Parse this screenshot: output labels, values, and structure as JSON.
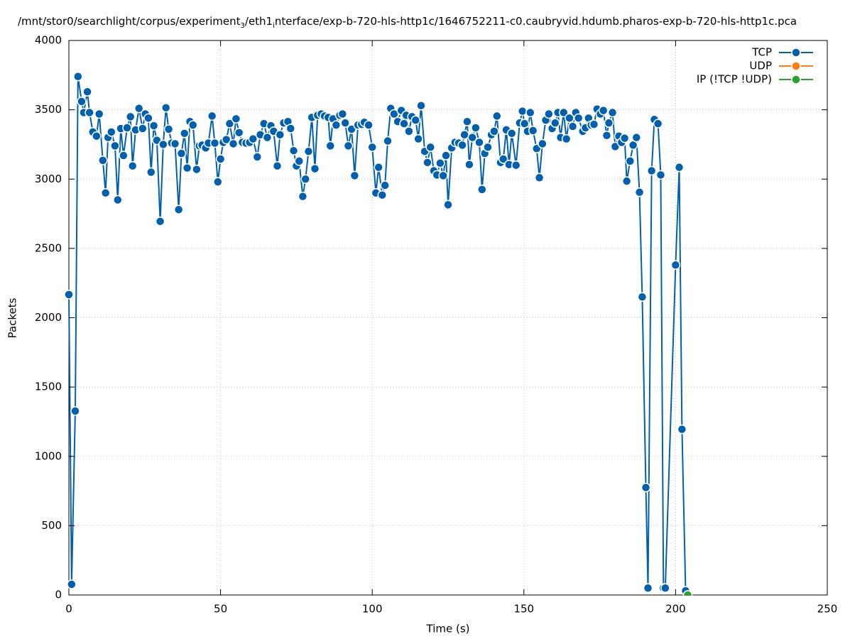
{
  "chart_data": {
    "type": "line",
    "title": [
      "/mnt/stor0/searchlight/corpus/experiment",
      "3",
      "/eth1",
      "i",
      "nterface/exp-b-720-hls-http1c/1646752211-c0.caubryvid.hdumb.pharos-exp-b-720-hls-http1c.pca"
    ],
    "x_label": "Time (s)",
    "y_label": "Packets",
    "xlim": [
      0,
      250
    ],
    "xticks": [
      0,
      50,
      100,
      150,
      200,
      250
    ],
    "ylim": [
      0,
      4000
    ],
    "yticks": [
      0,
      500,
      1000,
      1500,
      2000,
      2500,
      3000,
      3500,
      4000
    ],
    "grid": true,
    "legend": "top-right",
    "series": [
      {
        "name": "TCP",
        "color": "#0060ad",
        "x": [
          0,
          0.9,
          2.1,
          3.0,
          4.2,
          4.9,
          6.1,
          6.8,
          7.9,
          9.1,
          10.0,
          11.2,
          12.1,
          12.9,
          14.0,
          15.2,
          16.1,
          17.1,
          18.0,
          19.2,
          20.3,
          21.0,
          22.0,
          23.1,
          24.3,
          25.2,
          26.2,
          27.1,
          28.0,
          29.0,
          30.1,
          31.1,
          32.0,
          32.9,
          33.9,
          35.0,
          36.2,
          37.1,
          38.1,
          39.0,
          39.9,
          40.9,
          42.1,
          43.0,
          43.9,
          45.1,
          46.0,
          47.2,
          48.1,
          49.1,
          50.0,
          50.9,
          51.9,
          53.0,
          54.2,
          55.1,
          56.1,
          57.2,
          58.4,
          59.6,
          60.7,
          62.1,
          63.1,
          64.3,
          65.4,
          66.6,
          67.5,
          68.7,
          69.6,
          70.8,
          72.2,
          73.1,
          74.1,
          75.0,
          75.9,
          77.1,
          78.0,
          79.0,
          80.1,
          81.1,
          82.0,
          83.2,
          84.3,
          85.5,
          86.2,
          87.1,
          88.1,
          89.3,
          90.2,
          91.1,
          92.1,
          93.2,
          94.2,
          95.3,
          96.5,
          97.4,
          98.8,
          100.0,
          101.2,
          102.1,
          103.3,
          104.2,
          105.1,
          106.1,
          107.2,
          108.4,
          109.6,
          110.5,
          111.2,
          112.1,
          113.1,
          114.3,
          115.2,
          116.1,
          117.3,
          118.2,
          119.2,
          120.3,
          121.3,
          122.4,
          123.4,
          124.3,
          125.0,
          126.2,
          127.3,
          128.5,
          129.7,
          130.4,
          131.3,
          132.0,
          133.0,
          134.1,
          135.3,
          136.2,
          137.1,
          138.1,
          139.3,
          140.2,
          141.1,
          142.3,
          143.2,
          144.2,
          145.1,
          146.0,
          147.4,
          148.6,
          149.5,
          150.2,
          151.2,
          152.1,
          153.0,
          154.2,
          155.1,
          156.1,
          157.2,
          158.2,
          159.3,
          160.3,
          161.2,
          162.1,
          163.1,
          164.0,
          165.0,
          166.1,
          167.1,
          168.0,
          169.4,
          170.3,
          171.3,
          172.2,
          173.1,
          174.1,
          175.2,
          176.2,
          177.3,
          178.0,
          179.2,
          180.1,
          181.3,
          182.2,
          183.2,
          183.9,
          185.0,
          186.0,
          187.1,
          188.1,
          189.0,
          190.2,
          190.9,
          192.1,
          193.0,
          194.2,
          195.1,
          196.0,
          196.6,
          200.0,
          201.2,
          202.1,
          203.3
        ],
        "values": [
          2167,
          77,
          1327,
          3740,
          3560,
          3480,
          3630,
          3480,
          3340,
          3310,
          3470,
          3135,
          2900,
          3300,
          3340,
          3240,
          2850,
          3365,
          3170,
          3370,
          3450,
          3095,
          3355,
          3510,
          3365,
          3470,
          3440,
          3050,
          3385,
          3280,
          2695,
          3250,
          3515,
          3360,
          3260,
          3255,
          2780,
          3185,
          3330,
          3080,
          3415,
          3390,
          3070,
          3240,
          3245,
          3225,
          3260,
          3455,
          3260,
          2980,
          3145,
          3265,
          3285,
          3400,
          3255,
          3435,
          3335,
          3265,
          3260,
          3265,
          3290,
          3160,
          3320,
          3400,
          3300,
          3385,
          3345,
          3095,
          3320,
          3405,
          3415,
          3365,
          3205,
          3095,
          3130,
          2875,
          3000,
          3200,
          3445,
          3075,
          3460,
          3470,
          3455,
          3445,
          3240,
          3435,
          3390,
          3460,
          3470,
          3405,
          3240,
          3360,
          3025,
          3390,
          3395,
          3410,
          3390,
          3230,
          2900,
          3085,
          2885,
          2955,
          3275,
          3510,
          3470,
          3415,
          3495,
          3400,
          3460,
          3345,
          3450,
          3425,
          3290,
          3530,
          3200,
          3120,
          3230,
          3060,
          3030,
          3115,
          3025,
          3170,
          2815,
          3225,
          3265,
          3260,
          3245,
          3320,
          3415,
          3105,
          3300,
          3370,
          3265,
          2925,
          3185,
          3230,
          3320,
          3345,
          3455,
          3120,
          3145,
          3355,
          3105,
          3330,
          3100,
          3405,
          3490,
          3400,
          3345,
          3480,
          3350,
          3220,
          3010,
          3255,
          3425,
          3470,
          3365,
          3405,
          3480,
          3300,
          3480,
          3290,
          3440,
          3380,
          3480,
          3440,
          3345,
          3370,
          3440,
          3390,
          3395,
          3505,
          3470,
          3495,
          3315,
          3405,
          3480,
          3235,
          3310,
          3265,
          3295,
          2985,
          3130,
          3245,
          3300,
          2905,
          2150,
          775,
          50,
          3060,
          3430,
          3400,
          3030,
          50,
          50,
          2380,
          3085,
          1195,
          30
        ]
      },
      {
        "name": "UDP",
        "color": "#ff7f0e",
        "x": [
          204
        ],
        "values": [
          0
        ]
      },
      {
        "name": "IP (!TCP  !UDP)",
        "color": "#2ca02c",
        "x": [
          204
        ],
        "values": [
          0
        ]
      }
    ]
  }
}
